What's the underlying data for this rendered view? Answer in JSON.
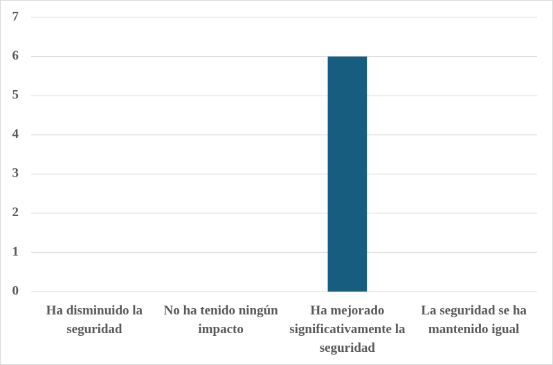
{
  "chart_data": {
    "type": "bar",
    "categories": [
      "Ha disminuido la seguridad",
      "No ha tenido ningún impacto",
      "Ha mejorado significativamente la seguridad",
      "La seguridad se ha mantenido igual"
    ],
    "values": [
      0,
      0,
      6,
      0
    ],
    "color": "#175d7f",
    "ylim": [
      0,
      7
    ],
    "yticks": [
      0,
      1,
      2,
      3,
      4,
      5,
      6,
      7
    ],
    "grid": true
  }
}
